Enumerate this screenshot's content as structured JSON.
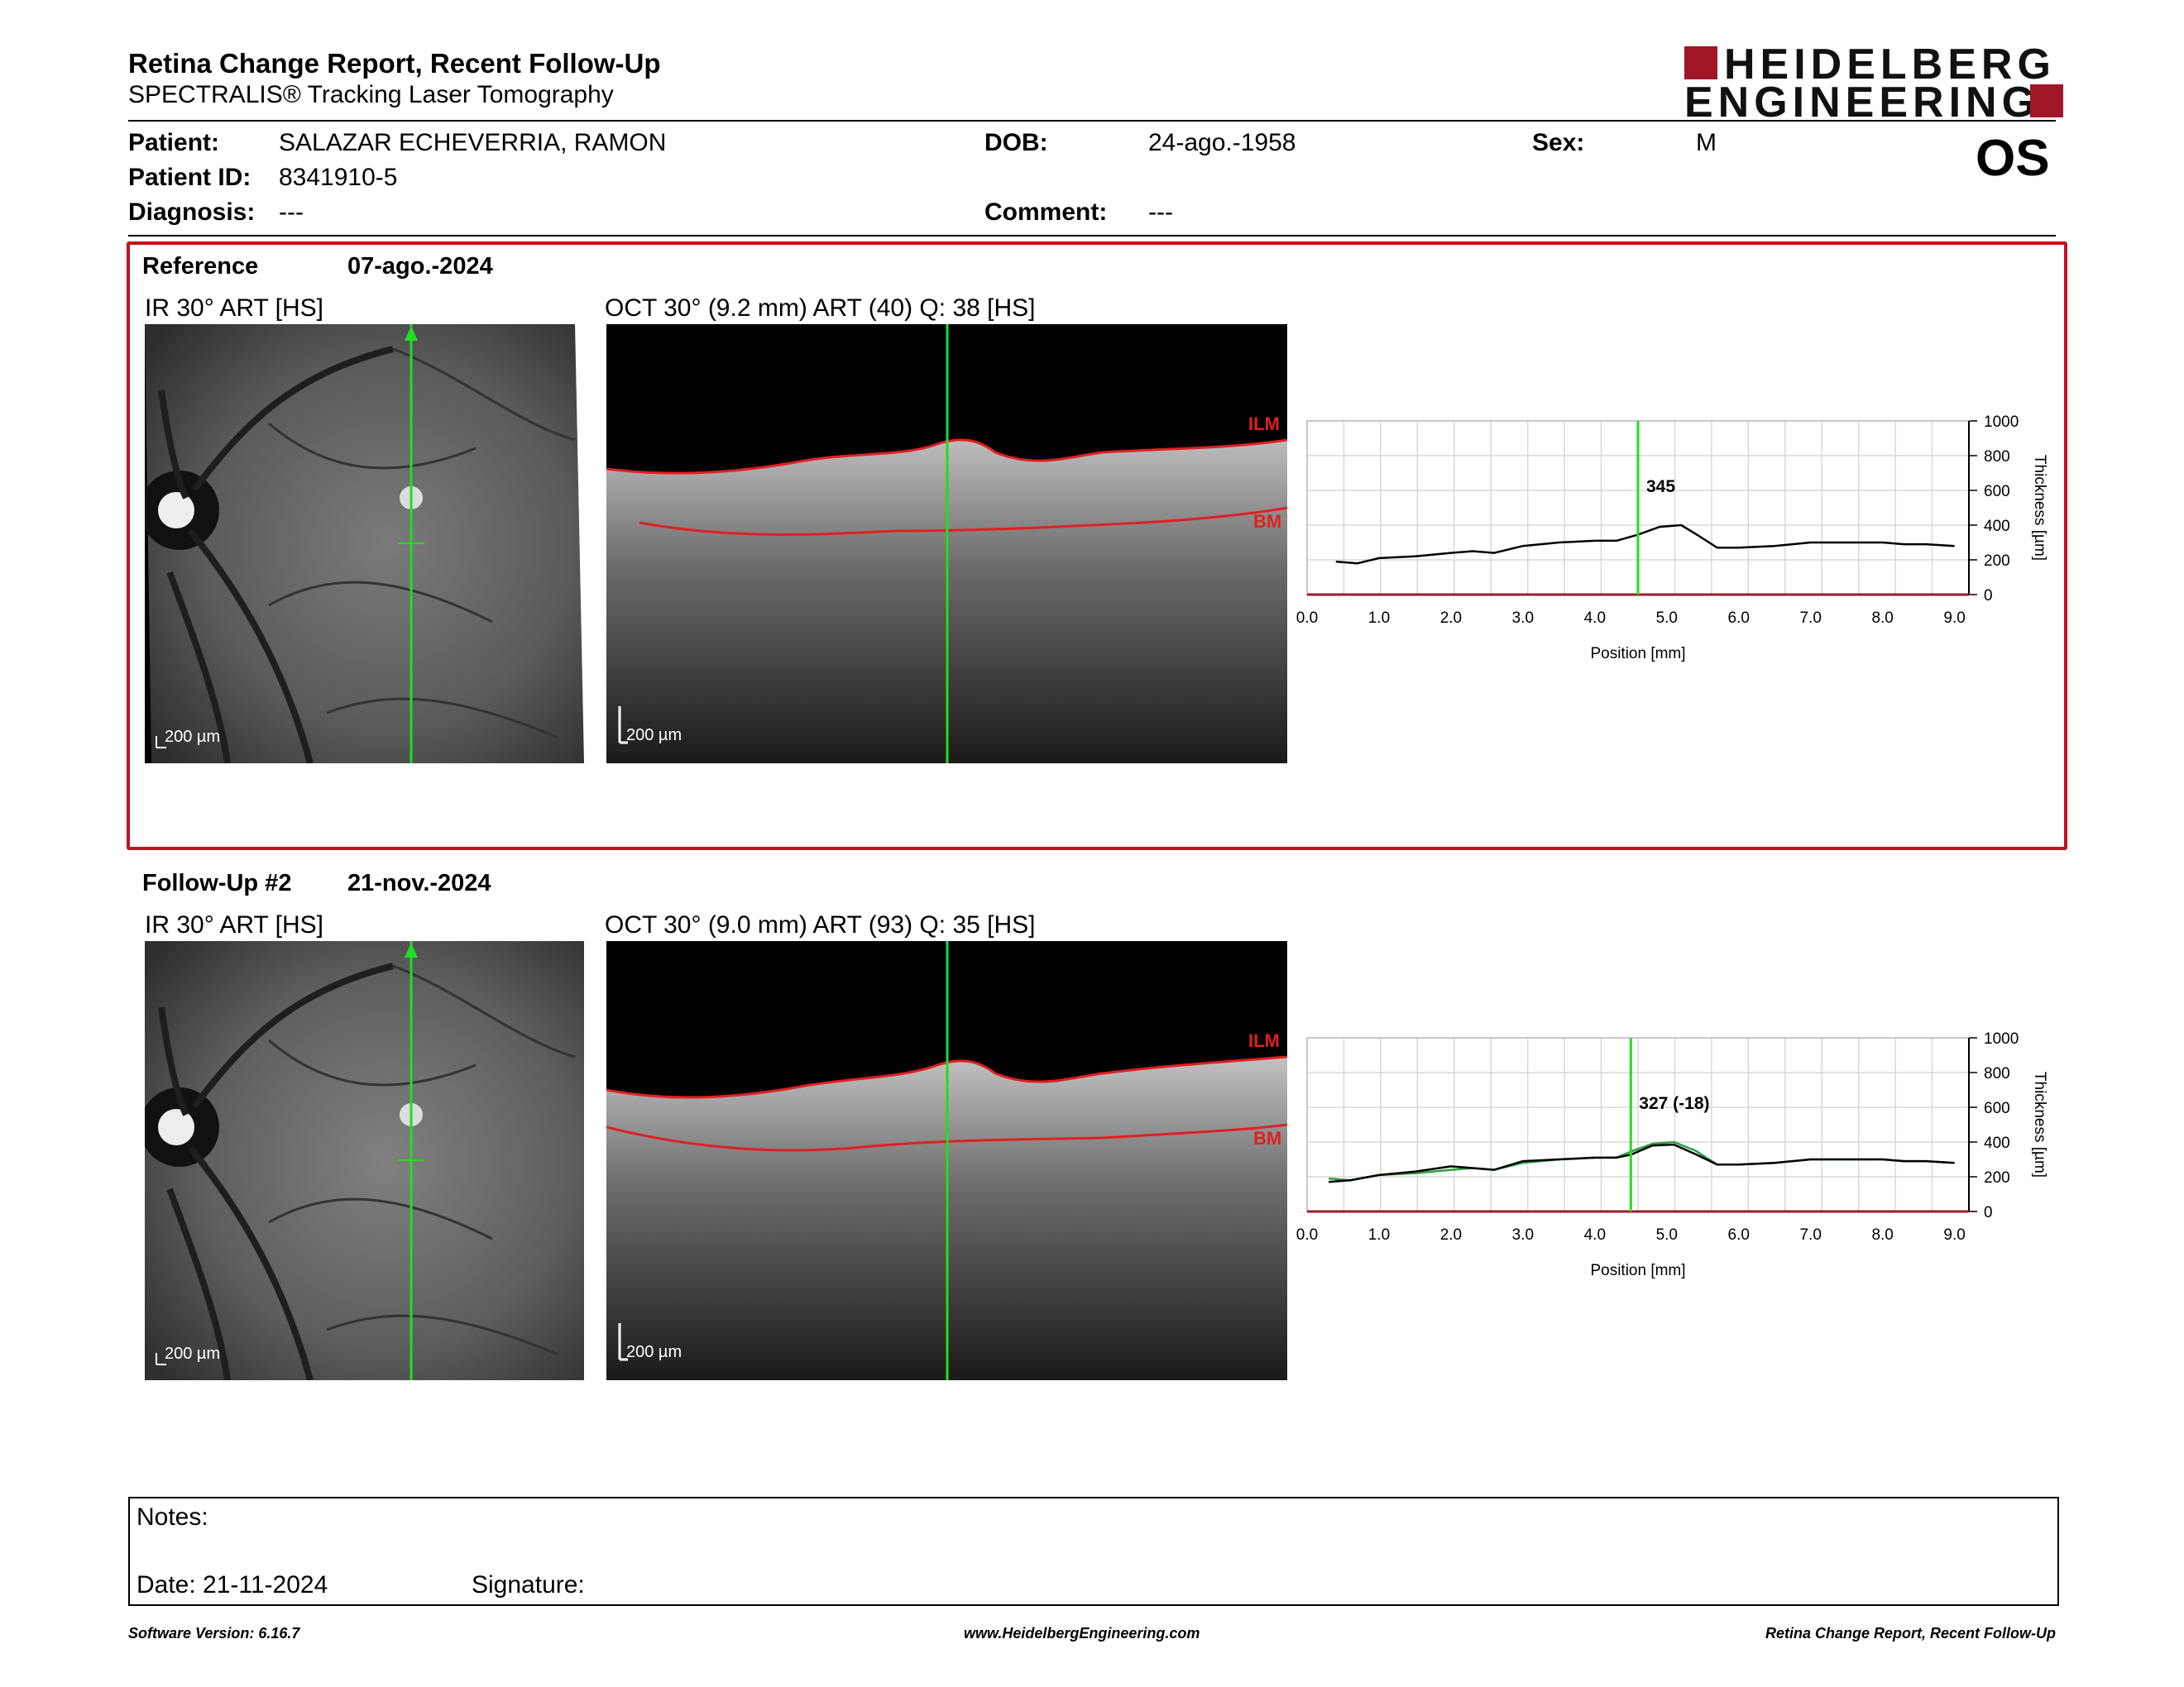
{
  "header": {
    "title": "Retina Change Report, Recent Follow-Up",
    "subtitle": "SPECTRALIS® Tracking Laser Tomography",
    "logo_line1": "HEIDELBERG",
    "logo_line2": "ENGINEERING",
    "eye": "OS"
  },
  "patient": {
    "patient_label": "Patient:",
    "patient_value": "SALAZAR ECHEVERRIA, RAMON",
    "id_label": "Patient ID:",
    "id_value": "8341910-5",
    "diagnosis_label": "Diagnosis:",
    "diagnosis_value": "---",
    "dob_label": "DOB:",
    "dob_value": "24-ago.-1958",
    "comment_label": "Comment:",
    "comment_value": "---",
    "sex_label": "Sex:",
    "sex_value": "M"
  },
  "reference": {
    "label": "Reference",
    "date": "07-ago.-2024",
    "ir_title": "IR 30° ART [HS]",
    "oct_title": "OCT 30° (9.2 mm) ART (40) Q: 38 [HS]",
    "ir_scale": "200 µm",
    "oct_scale": "200 µm",
    "ilm_label": "ILM",
    "bm_label": "BM"
  },
  "followup": {
    "label": "Follow-Up #2",
    "date": "21-nov.-2024",
    "ir_title": "IR 30° ART [HS]",
    "oct_title": "OCT 30° (9.0 mm) ART (93) Q: 35 [HS]",
    "ir_scale": "200 µm",
    "oct_scale": "200 µm",
    "ilm_label": "ILM",
    "bm_label": "BM"
  },
  "chart_data": [
    {
      "type": "line",
      "xlabel": "Position [mm]",
      "ylabel": "Thickness [µm]",
      "xlim": [
        0,
        9.2
      ],
      "ylim": [
        0,
        1000
      ],
      "xticks": [
        "0.0",
        "1.0",
        "2.0",
        "3.0",
        "4.0",
        "5.0",
        "6.0",
        "7.0",
        "8.0",
        "9.0"
      ],
      "yticks": [
        "0",
        "200",
        "400",
        "600",
        "800",
        "1000"
      ],
      "marker_x": 4.6,
      "marker_label": "345",
      "grid": true,
      "series": [
        {
          "color": "#000000",
          "x": [
            0.4,
            0.7,
            1.0,
            1.5,
            2.0,
            2.3,
            2.6,
            3.0,
            3.5,
            4.0,
            4.3,
            4.6,
            4.9,
            5.2,
            5.4,
            5.7,
            6.0,
            6.5,
            7.0,
            7.5,
            8.0,
            8.3,
            8.6,
            9.0
          ],
          "values": [
            190,
            180,
            210,
            220,
            240,
            250,
            240,
            280,
            300,
            310,
            310,
            345,
            390,
            400,
            350,
            270,
            270,
            280,
            300,
            300,
            300,
            290,
            290,
            280
          ]
        }
      ]
    },
    {
      "type": "line",
      "xlabel": "Position [mm]",
      "ylabel": "Thickness [µm]",
      "xlim": [
        0,
        9.2
      ],
      "ylim": [
        0,
        1000
      ],
      "xticks": [
        "0.0",
        "1.0",
        "2.0",
        "3.0",
        "4.0",
        "5.0",
        "6.0",
        "7.0",
        "8.0",
        "9.0"
      ],
      "yticks": [
        "0",
        "200",
        "400",
        "600",
        "800",
        "1000"
      ],
      "marker_x": 4.5,
      "marker_label": "327 (-18)",
      "grid": true,
      "series": [
        {
          "color": "#000000",
          "x": [
            0.3,
            0.6,
            1.0,
            1.5,
            2.0,
            2.3,
            2.6,
            3.0,
            3.5,
            4.0,
            4.3,
            4.5,
            4.8,
            5.1,
            5.4,
            5.7,
            6.0,
            6.5,
            7.0,
            7.5,
            8.0,
            8.3,
            8.6,
            9.0
          ],
          "values": [
            170,
            180,
            210,
            230,
            260,
            250,
            240,
            290,
            300,
            310,
            310,
            327,
            380,
            385,
            330,
            270,
            270,
            280,
            300,
            300,
            300,
            290,
            290,
            280
          ]
        },
        {
          "color": "#2e9e3e",
          "x": [
            0.3,
            0.6,
            1.0,
            1.5,
            2.0,
            2.3,
            2.6,
            3.0,
            3.5,
            4.0,
            4.3,
            4.5,
            4.8,
            5.1,
            5.4,
            5.7,
            6.0,
            6.5,
            7.0,
            7.5,
            8.0,
            8.3,
            8.6,
            9.0
          ],
          "values": [
            190,
            180,
            210,
            220,
            240,
            250,
            240,
            280,
            300,
            310,
            310,
            345,
            390,
            400,
            350,
            270,
            270,
            280,
            300,
            300,
            300,
            290,
            290,
            280
          ]
        }
      ]
    }
  ],
  "notes": {
    "notes_label": "Notes:",
    "date_label": "Date: 21-11-2024",
    "signature_label": "Signature:"
  },
  "footer": {
    "software": "Software Version: 6.16.7",
    "website": "www.HeidelbergEngineering.com",
    "report_name": "Retina Change Report, Recent Follow-Up"
  }
}
